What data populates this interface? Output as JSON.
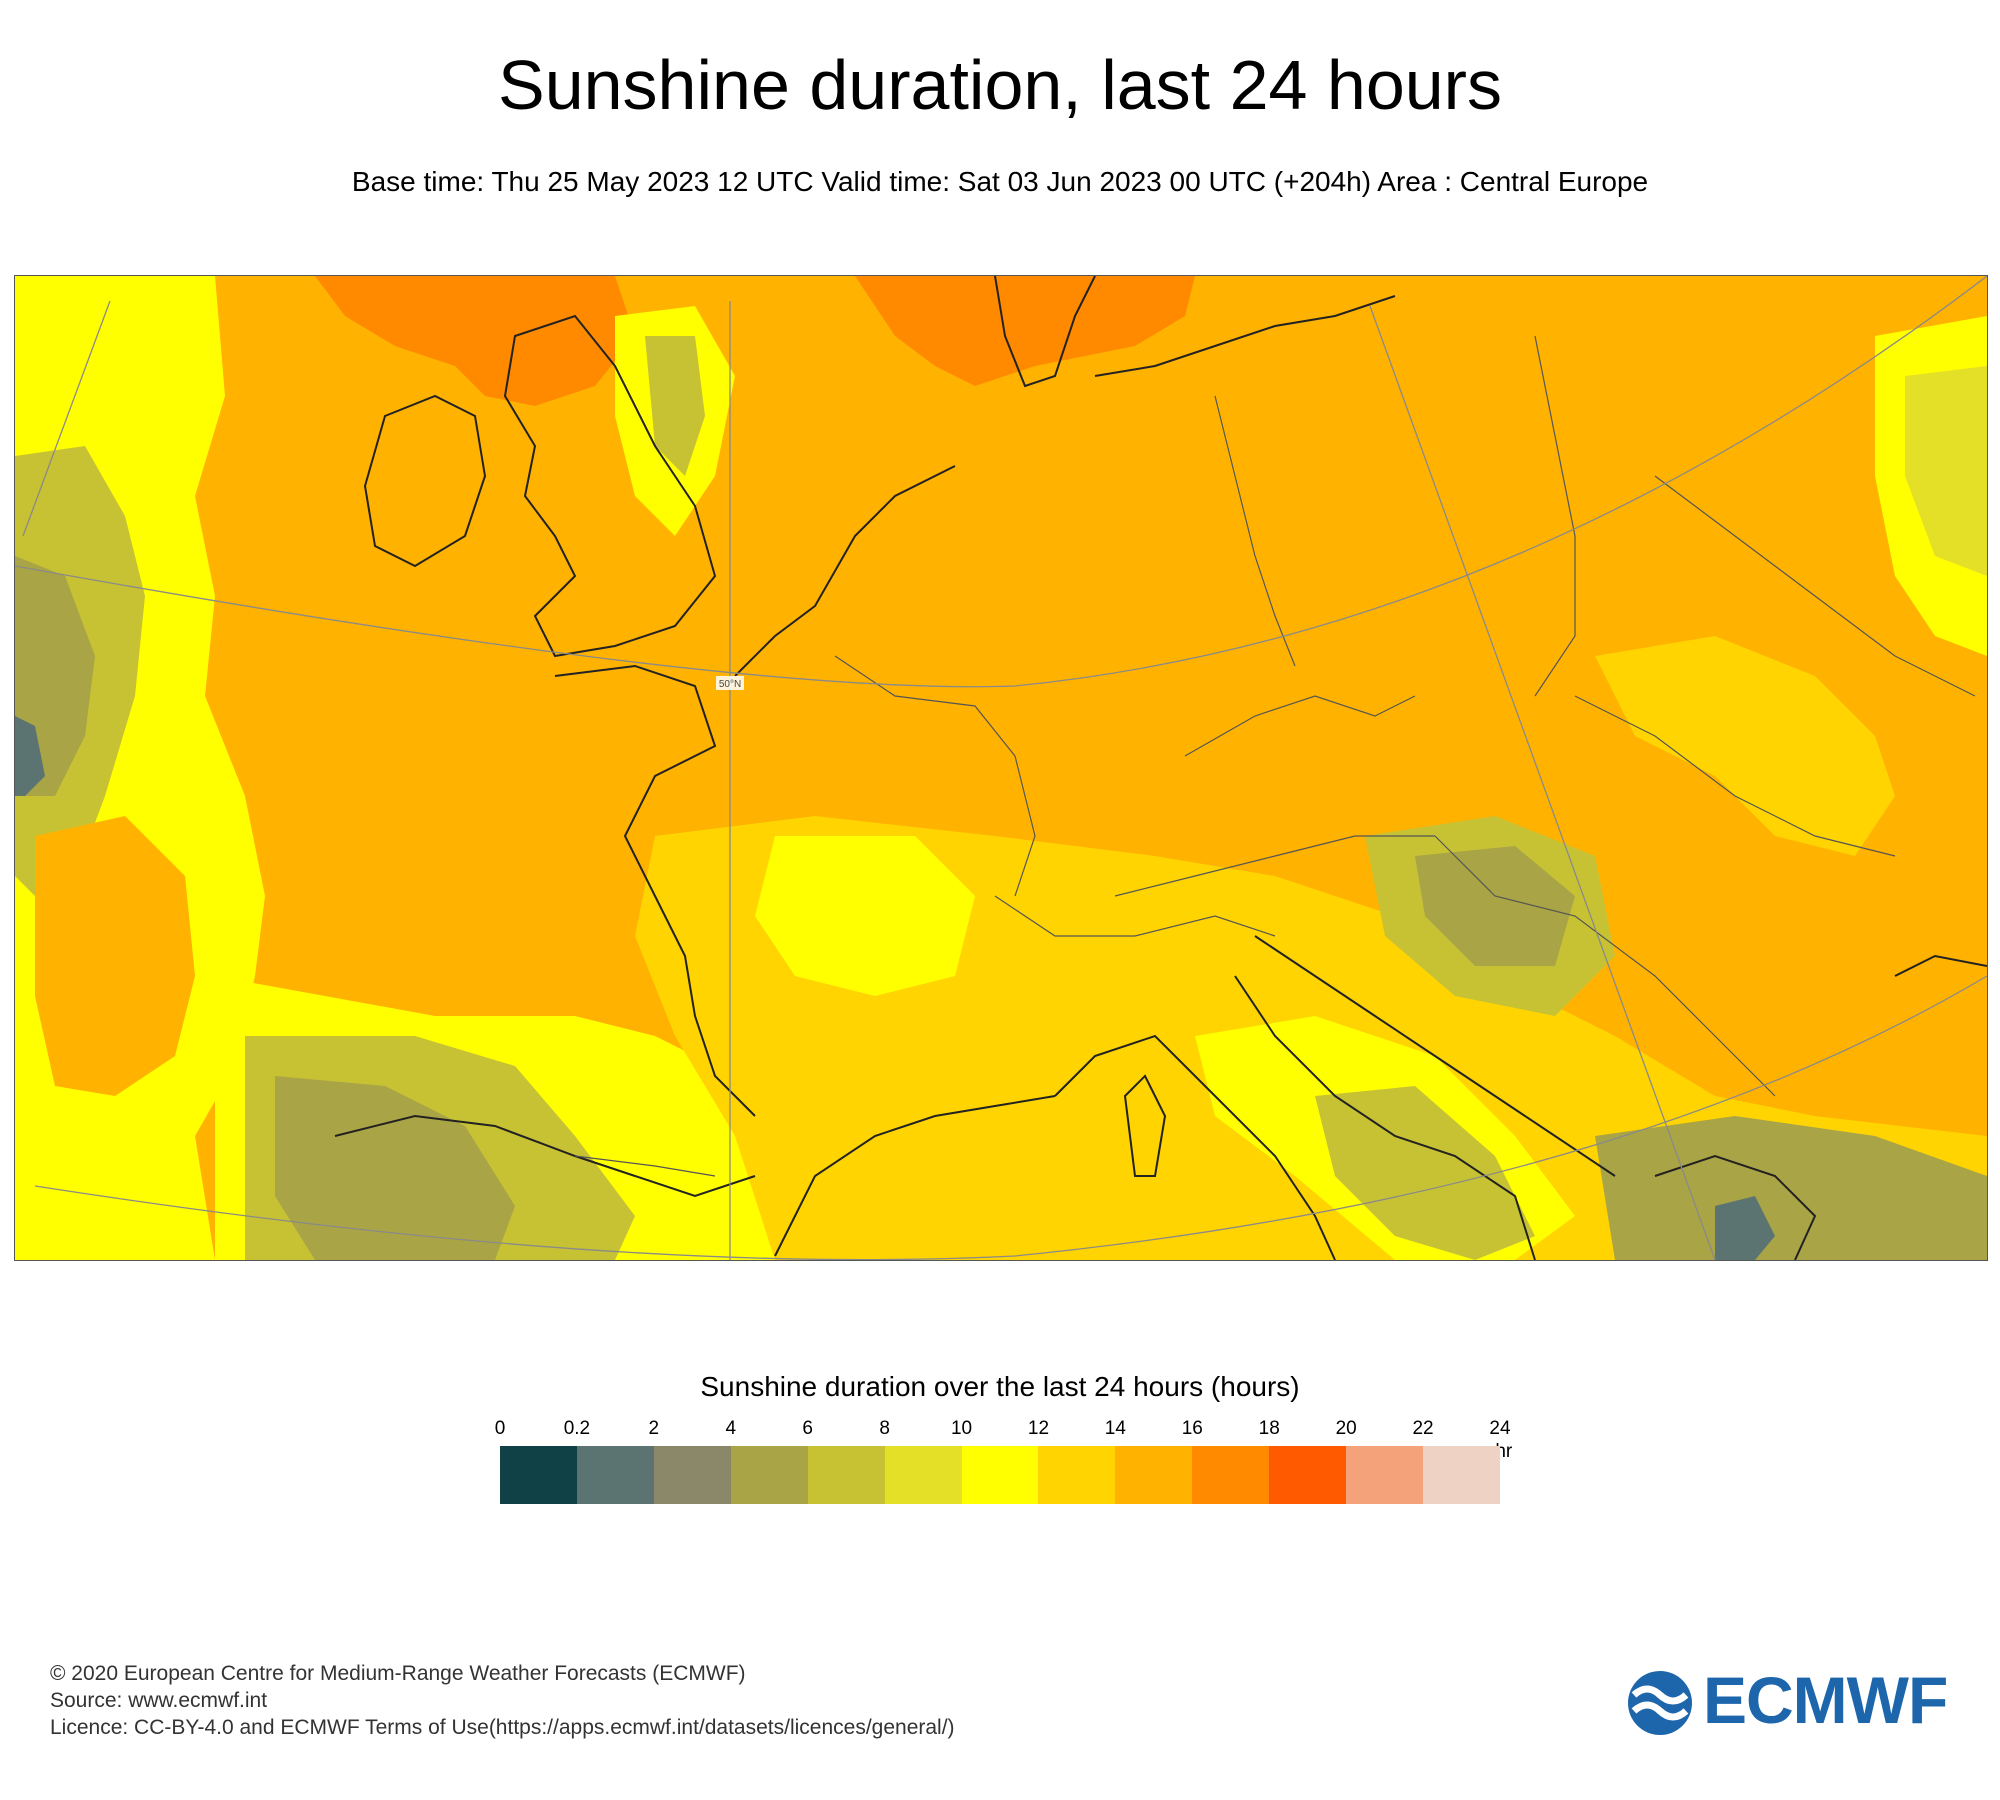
{
  "title": "Sunshine duration, last 24 hours",
  "subtitle": "Base time: Thu 25 May 2023 12 UTC Valid time: Sat 03 Jun 2023 00 UTC (+204h) Area : Central Europe",
  "map": {
    "graticule_label": "50°N"
  },
  "legend": {
    "title": "Sunshine duration over the last 24 hours (hours)",
    "unit": "-hr",
    "ticks": [
      "0",
      "0.2",
      "2",
      "4",
      "6",
      "8",
      "10",
      "12",
      "14",
      "16",
      "18",
      "20",
      "22",
      "24"
    ],
    "colors": [
      "#0f4146",
      "#5b7472",
      "#8a8868",
      "#a9a445",
      "#c7c234",
      "#e4e027",
      "#ffff00",
      "#ffd400",
      "#ffb200",
      "#ff8a00",
      "#ff5a00",
      "#f4a27a",
      "#eed3c4"
    ]
  },
  "footer": {
    "copyright": "© 2020 European Centre for Medium-Range Weather Forecasts (ECMWF)",
    "source": "Source: www.ecmwf.int",
    "licence": "Licence: CC-BY-4.0 and ECMWF Terms of Use(https://apps.ecmwf.int/datasets/licences/general/)"
  },
  "logo": {
    "text": "ECMWF",
    "color": "#1d66ac"
  }
}
